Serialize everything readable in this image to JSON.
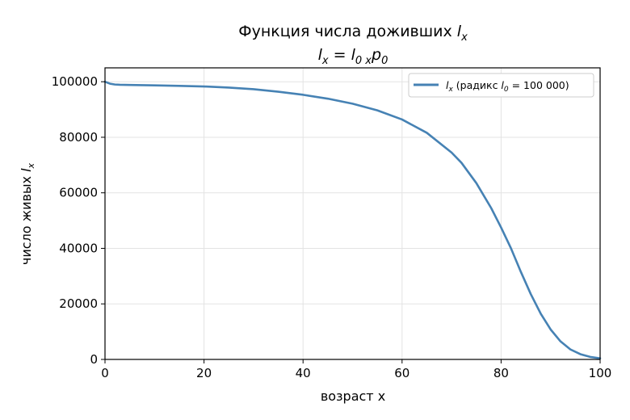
{
  "chart_data": {
    "type": "line",
    "title_main": "Функция числа доживших",
    "title_var": "l",
    "title_var_sub": "x",
    "subtitle_lhs": "l",
    "subtitle_lhs_sub": "x",
    "subtitle_eq": " = ",
    "subtitle_l": "l",
    "subtitle_l_sub": "0 x",
    "subtitle_p": "p",
    "subtitle_p_sub": "0",
    "xlabel": "возраст x",
    "ylabel_text": "число живых ",
    "ylabel_var": "l",
    "ylabel_var_sub": "x",
    "xlim": [
      0,
      100
    ],
    "ylim": [
      0,
      105000
    ],
    "x_ticks": [
      0,
      20,
      40,
      60,
      80,
      100
    ],
    "x_tick_labels": [
      "0",
      "20",
      "40",
      "60",
      "80",
      "100"
    ],
    "y_ticks": [
      0,
      20000,
      40000,
      60000,
      80000,
      100000
    ],
    "y_tick_labels": [
      "0",
      "20000",
      "40000",
      "60000",
      "80000",
      "100000"
    ],
    "grid": true,
    "legend_position": "top-right",
    "series": [
      {
        "legend_var": "l",
        "legend_var_sub": "x",
        "legend_text": " (радикс ",
        "legend_l": "l",
        "legend_l_sub": "0",
        "legend_tail": " = 100 000)",
        "color": "#4682b4",
        "x": [
          0,
          1,
          2,
          3,
          5,
          10,
          15,
          20,
          25,
          30,
          35,
          40,
          45,
          50,
          55,
          60,
          65,
          70,
          72,
          75,
          78,
          80,
          82,
          84,
          86,
          88,
          90,
          92,
          94,
          96,
          98,
          100
        ],
        "y": [
          100000,
          99300,
          99000,
          98900,
          98850,
          98700,
          98500,
          98300,
          97900,
          97300,
          96400,
          95300,
          93900,
          92100,
          89700,
          86400,
          81600,
          74500,
          70800,
          63500,
          54500,
          47500,
          40000,
          31500,
          23500,
          16500,
          10800,
          6500,
          3600,
          1900,
          900,
          400
        ]
      }
    ]
  }
}
